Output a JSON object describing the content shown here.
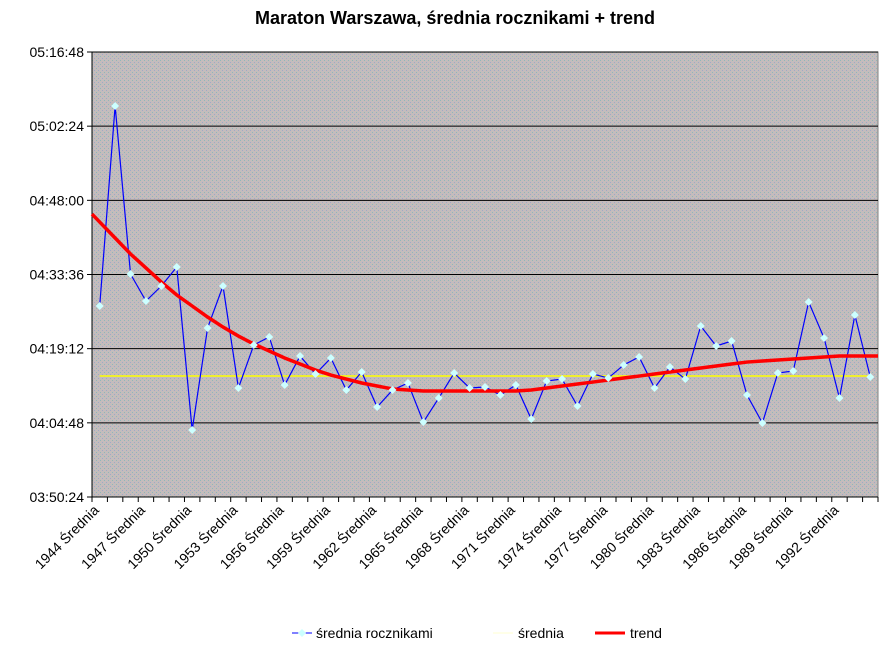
{
  "chart_data": {
    "type": "line",
    "title": "Maraton Warszawa, średnia rocznikami + trend",
    "xlabel": "",
    "ylabel": "",
    "ylim": [
      "03:50:24",
      "05:16:48"
    ],
    "yticks": [
      "03:50:24",
      "04:04:48",
      "04:19:12",
      "04:33:36",
      "04:48:00",
      "05:02:24",
      "05:16:48"
    ],
    "grid": true,
    "legend_position": "bottom",
    "x_start_year": 1944,
    "x_suffix": "Średnia",
    "x_label_every": 3,
    "categories_count": 51,
    "series": [
      {
        "name": "średnia rocznikami",
        "color": "#0000ff",
        "marker_color": "#ccffff",
        "values": [
          "4:27:29",
          "5:06:19",
          "4:33:42",
          "4:28:27",
          "4:31:22",
          "4:35:03",
          "4:03:24",
          "4:23:13",
          "4:31:22",
          "4:11:34",
          "4:19:55",
          "4:21:28",
          "4:12:09",
          "4:17:46",
          "4:14:17",
          "4:17:23",
          "4:11:10",
          "4:14:40",
          "4:07:52",
          "4:11:10",
          "4:12:32",
          "4:04:57",
          "4:09:37",
          "4:14:28",
          "4:11:34",
          "4:11:45",
          "4:10:12",
          "4:12:09",
          "4:05:32",
          "4:12:55",
          "4:13:18",
          "4:08:04",
          "4:14:17",
          "4:13:30",
          "4:16:02",
          "4:17:35",
          "4:11:34",
          "4:15:38",
          "4:13:18",
          "4:23:36",
          "4:19:43",
          "4:20:41",
          "4:10:12",
          "4:04:46",
          "4:14:28",
          "4:14:52",
          "4:28:15",
          "4:21:16",
          "4:09:37",
          "4:25:44",
          "4:13:42"
        ]
      },
      {
        "name": "średnia",
        "color": "#ffff00",
        "value": "4:13:53"
      },
      {
        "name": "trend",
        "color": "#ff0000",
        "values": [
          "4:43:47",
          "4:40:41",
          "4:37:35",
          "4:34:52",
          "4:32:08",
          "4:29:37",
          "4:27:29",
          "4:25:21",
          "4:23:24",
          "4:21:39",
          "4:20:06",
          "4:18:45",
          "4:17:23",
          "4:16:13",
          "4:15:03",
          "4:14:05",
          "4:13:18",
          "4:12:32",
          "4:11:57",
          "4:11:22",
          "4:11:10",
          "4:10:59",
          "4:10:59",
          "4:10:59",
          "4:10:59",
          "4:10:59",
          "4:10:59",
          "4:10:59",
          "4:11:10",
          "4:11:34",
          "4:11:57",
          "4:12:20",
          "4:12:43",
          "4:13:07",
          "4:13:30",
          "4:13:53",
          "4:14:17",
          "4:14:40",
          "4:15:03",
          "4:15:27",
          "4:15:50",
          "4:16:13",
          "4:16:36",
          "4:16:48",
          "4:17:00",
          "4:17:11",
          "4:17:23",
          "4:17:35",
          "4:17:46",
          "4:17:46",
          "4:17:46"
        ]
      }
    ]
  }
}
